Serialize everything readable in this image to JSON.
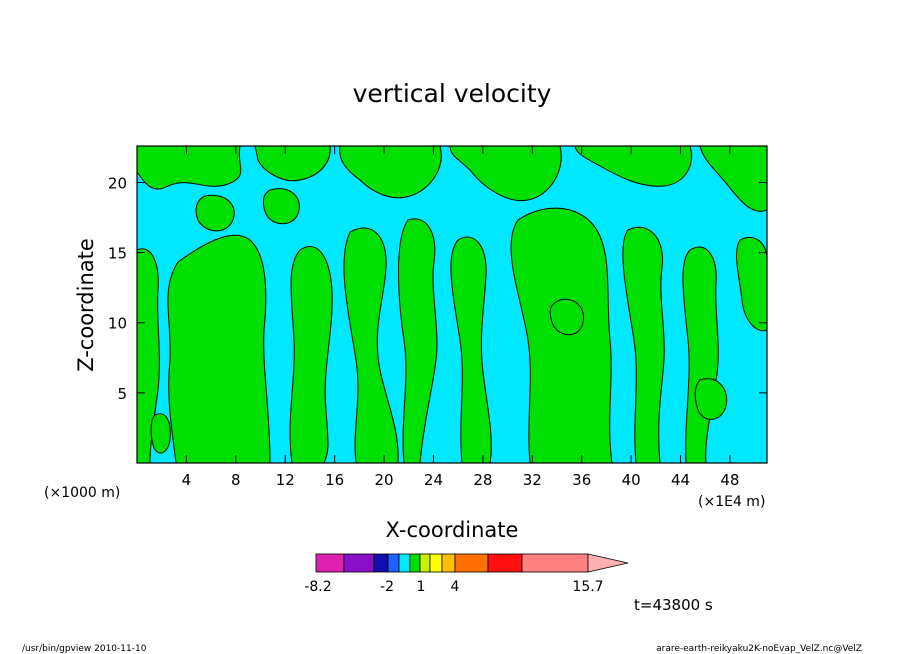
{
  "chart_data": {
    "type": "heatmap",
    "title": "vertical velocity",
    "xlabel": "X-coordinate",
    "ylabel": "Z-coordinate",
    "x_unit_left": "(×1000 m)",
    "x_unit_right": "(×1E4 m)",
    "x_ticks": [
      4,
      8,
      12,
      16,
      20,
      24,
      28,
      32,
      36,
      40,
      44,
      48
    ],
    "y_ticks": [
      5,
      10,
      15,
      20
    ],
    "xlim": [
      0,
      51
    ],
    "ylim": [
      0,
      22.6
    ],
    "colorbar": {
      "colors": [
        "#e020b0",
        "#8a10c8",
        "#1010b0",
        "#2060ff",
        "#00e8ff",
        "#00e000",
        "#c8f000",
        "#ffff00",
        "#ffc000",
        "#ff7000",
        "#ff1010",
        "#ff8080",
        "#ffb0b0"
      ],
      "tick_labels": [
        "-8.2",
        "-2",
        "1",
        "4",
        "15.7"
      ]
    },
    "field_colors": {
      "negative": "#00e8ff",
      "positive": "#00e000",
      "contour": "#000000"
    },
    "time_label": "t=43800 s"
  },
  "footer": {
    "left": "/usr/bin/gpview   2010-11-10",
    "right": "arare-earth-reikyaku2K-noEvap_VelZ.nc@VelZ"
  }
}
